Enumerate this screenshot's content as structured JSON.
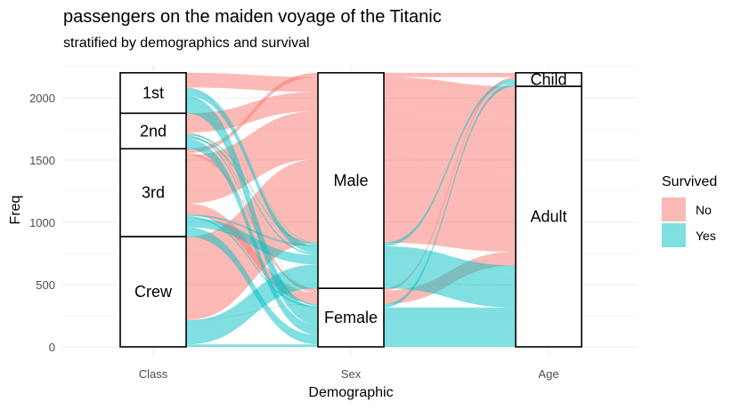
{
  "chart_data": {
    "type": "alluvial",
    "title": "passengers on the maiden voyage of the Titanic",
    "subtitle": "stratified by demographics and survival",
    "xlabel": "Demographic",
    "ylabel": "Freq",
    "ylim": [
      0,
      2201
    ],
    "yticks": [
      0,
      500,
      1000,
      1500,
      2000
    ],
    "axes": [
      "Class",
      "Sex",
      "Age"
    ],
    "strata": {
      "Class": [
        "1st",
        "2nd",
        "3rd",
        "Crew"
      ],
      "Sex": [
        "Male",
        "Female"
      ],
      "Age": [
        "Child",
        "Adult"
      ]
    },
    "fill": "Survived",
    "legend": {
      "title": "Survived",
      "position": "right",
      "items": [
        {
          "label": "No",
          "color": "#F8766D"
        },
        {
          "label": "Yes",
          "color": "#00BFC4"
        }
      ]
    },
    "flows": [
      {
        "Class": "1st",
        "Sex": "Male",
        "Age": "Child",
        "Survived": "No",
        "freq": 0
      },
      {
        "Class": "2nd",
        "Sex": "Male",
        "Age": "Child",
        "Survived": "No",
        "freq": 0
      },
      {
        "Class": "3rd",
        "Sex": "Male",
        "Age": "Child",
        "Survived": "No",
        "freq": 35
      },
      {
        "Class": "Crew",
        "Sex": "Male",
        "Age": "Child",
        "Survived": "No",
        "freq": 0
      },
      {
        "Class": "1st",
        "Sex": "Female",
        "Age": "Child",
        "Survived": "No",
        "freq": 0
      },
      {
        "Class": "2nd",
        "Sex": "Female",
        "Age": "Child",
        "Survived": "No",
        "freq": 0
      },
      {
        "Class": "3rd",
        "Sex": "Female",
        "Age": "Child",
        "Survived": "No",
        "freq": 17
      },
      {
        "Class": "Crew",
        "Sex": "Female",
        "Age": "Child",
        "Survived": "No",
        "freq": 0
      },
      {
        "Class": "1st",
        "Sex": "Male",
        "Age": "Adult",
        "Survived": "No",
        "freq": 118
      },
      {
        "Class": "2nd",
        "Sex": "Male",
        "Age": "Adult",
        "Survived": "No",
        "freq": 154
      },
      {
        "Class": "3rd",
        "Sex": "Male",
        "Age": "Adult",
        "Survived": "No",
        "freq": 387
      },
      {
        "Class": "Crew",
        "Sex": "Male",
        "Age": "Adult",
        "Survived": "No",
        "freq": 670
      },
      {
        "Class": "1st",
        "Sex": "Female",
        "Age": "Adult",
        "Survived": "No",
        "freq": 4
      },
      {
        "Class": "2nd",
        "Sex": "Female",
        "Age": "Adult",
        "Survived": "No",
        "freq": 13
      },
      {
        "Class": "3rd",
        "Sex": "Female",
        "Age": "Adult",
        "Survived": "No",
        "freq": 89
      },
      {
        "Class": "Crew",
        "Sex": "Female",
        "Age": "Adult",
        "Survived": "No",
        "freq": 3
      },
      {
        "Class": "1st",
        "Sex": "Male",
        "Age": "Child",
        "Survived": "Yes",
        "freq": 5
      },
      {
        "Class": "2nd",
        "Sex": "Male",
        "Age": "Child",
        "Survived": "Yes",
        "freq": 11
      },
      {
        "Class": "3rd",
        "Sex": "Male",
        "Age": "Child",
        "Survived": "Yes",
        "freq": 13
      },
      {
        "Class": "Crew",
        "Sex": "Male",
        "Age": "Child",
        "Survived": "Yes",
        "freq": 0
      },
      {
        "Class": "1st",
        "Sex": "Female",
        "Age": "Child",
        "Survived": "Yes",
        "freq": 1
      },
      {
        "Class": "2nd",
        "Sex": "Female",
        "Age": "Child",
        "Survived": "Yes",
        "freq": 13
      },
      {
        "Class": "3rd",
        "Sex": "Female",
        "Age": "Child",
        "Survived": "Yes",
        "freq": 14
      },
      {
        "Class": "Crew",
        "Sex": "Female",
        "Age": "Child",
        "Survived": "Yes",
        "freq": 0
      },
      {
        "Class": "1st",
        "Sex": "Male",
        "Age": "Adult",
        "Survived": "Yes",
        "freq": 57
      },
      {
        "Class": "2nd",
        "Sex": "Male",
        "Age": "Adult",
        "Survived": "Yes",
        "freq": 14
      },
      {
        "Class": "3rd",
        "Sex": "Male",
        "Age": "Adult",
        "Survived": "Yes",
        "freq": 75
      },
      {
        "Class": "Crew",
        "Sex": "Male",
        "Age": "Adult",
        "Survived": "Yes",
        "freq": 192
      },
      {
        "Class": "1st",
        "Sex": "Female",
        "Age": "Adult",
        "Survived": "Yes",
        "freq": 140
      },
      {
        "Class": "2nd",
        "Sex": "Female",
        "Age": "Adult",
        "Survived": "Yes",
        "freq": 80
      },
      {
        "Class": "3rd",
        "Sex": "Female",
        "Age": "Adult",
        "Survived": "Yes",
        "freq": 76
      },
      {
        "Class": "Crew",
        "Sex": "Female",
        "Age": "Adult",
        "Survived": "Yes",
        "freq": 20
      }
    ]
  }
}
